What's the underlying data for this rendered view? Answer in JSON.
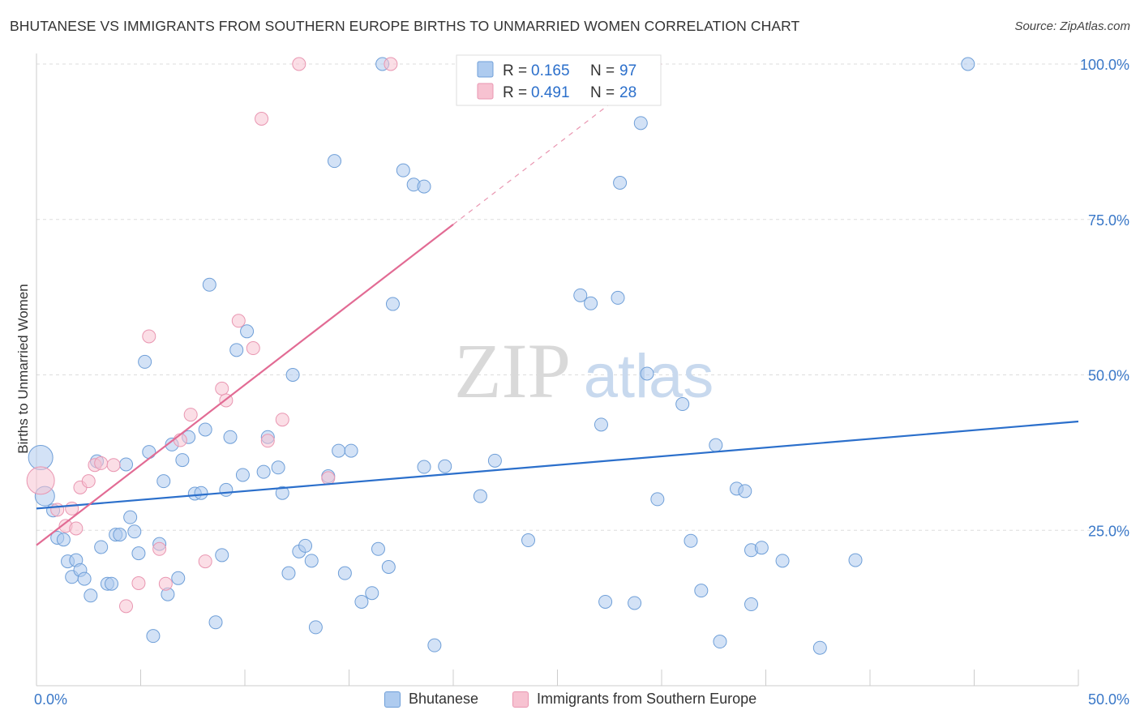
{
  "title": "BHUTANESE VS IMMIGRANTS FROM SOUTHERN EUROPE BIRTHS TO UNMARRIED WOMEN CORRELATION CHART",
  "source": "Source: ZipAtlas.com",
  "watermark": {
    "zip": "ZIP",
    "atlas": "atlas"
  },
  "colors": {
    "blue_fill": "#aecbef",
    "blue_stroke": "#6f9fd8",
    "blue_line": "#2b6fcb",
    "pink_fill": "#f7c2d1",
    "pink_stroke": "#e996b1",
    "pink_line": "#e26b94",
    "tick_text": "#3a78c8",
    "grid": "#dddddd"
  },
  "legend_stats": [
    {
      "r_label": "R =",
      "r_value": "0.165",
      "n_label": "N =",
      "n_value": "97"
    },
    {
      "r_label": "R =",
      "r_value": "0.491",
      "n_label": "N =",
      "n_value": "28"
    }
  ],
  "chart_data": {
    "type": "scatter",
    "title": "BHUTANESE VS IMMIGRANTS FROM SOUTHERN EUROPE BIRTHS TO UNMARRIED WOMEN CORRELATION CHART",
    "xlabel": "",
    "ylabel": "Births to Unmarried Women",
    "xlim": [
      0,
      50
    ],
    "ylim": [
      0,
      105
    ],
    "x_tick_labels": [
      "0.0%",
      "50.0%"
    ],
    "y_ticks": [
      25,
      50,
      75,
      100
    ],
    "y_tick_labels": [
      "25.0%",
      "50.0%",
      "75.0%",
      "100.0%"
    ],
    "grid": "horizontal dashed",
    "legend_position": "top-center and bottom",
    "series": [
      {
        "name": "Bhutanese",
        "color": "#aecbef",
        "r": 0.165,
        "n": 97,
        "trend": {
          "x": [
            0,
            50
          ],
          "y": [
            28.5,
            42.5
          ]
        },
        "points": [
          [
            0.2,
            36.7
          ],
          [
            0.4,
            30.5
          ],
          [
            0.8,
            28.2
          ],
          [
            1.0,
            23.8
          ],
          [
            1.3,
            23.5
          ],
          [
            1.5,
            20.0
          ],
          [
            1.7,
            17.5
          ],
          [
            1.9,
            20.2
          ],
          [
            2.1,
            18.6
          ],
          [
            2.3,
            17.2
          ],
          [
            2.6,
            14.5
          ],
          [
            2.9,
            36.1
          ],
          [
            3.1,
            22.3
          ],
          [
            3.4,
            16.4
          ],
          [
            3.6,
            16.4
          ],
          [
            3.8,
            24.3
          ],
          [
            4.0,
            24.3
          ],
          [
            4.3,
            35.6
          ],
          [
            4.5,
            27.1
          ],
          [
            4.7,
            24.8
          ],
          [
            4.9,
            21.3
          ],
          [
            5.2,
            52.1
          ],
          [
            5.4,
            37.6
          ],
          [
            5.6,
            8.0
          ],
          [
            5.9,
            22.8
          ],
          [
            6.1,
            32.9
          ],
          [
            6.3,
            14.7
          ],
          [
            6.5,
            38.8
          ],
          [
            6.8,
            17.3
          ],
          [
            7.0,
            36.3
          ],
          [
            7.3,
            40.0
          ],
          [
            7.6,
            30.9
          ],
          [
            7.9,
            31.0
          ],
          [
            8.1,
            41.2
          ],
          [
            8.3,
            64.5
          ],
          [
            8.6,
            10.2
          ],
          [
            8.9,
            21.0
          ],
          [
            9.1,
            31.5
          ],
          [
            9.3,
            40.0
          ],
          [
            9.6,
            54.0
          ],
          [
            9.9,
            33.9
          ],
          [
            10.1,
            57.0
          ],
          [
            10.9,
            34.4
          ],
          [
            11.1,
            40.0
          ],
          [
            11.6,
            35.1
          ],
          [
            11.8,
            31.0
          ],
          [
            12.1,
            18.1
          ],
          [
            12.3,
            50.0
          ],
          [
            12.6,
            21.6
          ],
          [
            12.9,
            22.5
          ],
          [
            13.2,
            20.1
          ],
          [
            13.4,
            9.4
          ],
          [
            14.0,
            33.7
          ],
          [
            14.3,
            84.4
          ],
          [
            14.5,
            37.8
          ],
          [
            14.8,
            18.1
          ],
          [
            15.1,
            37.8
          ],
          [
            15.6,
            13.5
          ],
          [
            16.1,
            14.9
          ],
          [
            16.4,
            22.0
          ],
          [
            16.9,
            19.1
          ],
          [
            17.1,
            61.4
          ],
          [
            17.6,
            82.9
          ],
          [
            18.1,
            80.6
          ],
          [
            18.6,
            80.3
          ],
          [
            18.6,
            35.2
          ],
          [
            19.1,
            6.5
          ],
          [
            19.6,
            35.3
          ],
          [
            16.6,
            100.0
          ],
          [
            27.0,
            100.0
          ],
          [
            21.3,
            30.5
          ],
          [
            22.0,
            36.2
          ],
          [
            23.6,
            23.4
          ],
          [
            26.1,
            62.8
          ],
          [
            26.6,
            61.5
          ],
          [
            27.1,
            42.0
          ],
          [
            27.3,
            13.5
          ],
          [
            27.9,
            62.4
          ],
          [
            28.0,
            80.9
          ],
          [
            28.7,
            13.3
          ],
          [
            29.3,
            50.2
          ],
          [
            29.8,
            30.0
          ],
          [
            31.0,
            45.3
          ],
          [
            31.4,
            23.3
          ],
          [
            31.9,
            15.3
          ],
          [
            32.6,
            38.7
          ],
          [
            32.8,
            7.1
          ],
          [
            33.6,
            31.7
          ],
          [
            34.0,
            31.3
          ],
          [
            34.3,
            13.1
          ],
          [
            34.3,
            21.8
          ],
          [
            34.8,
            22.2
          ],
          [
            35.8,
            20.1
          ],
          [
            37.6,
            6.1
          ],
          [
            39.3,
            20.2
          ],
          [
            44.7,
            100.0
          ],
          [
            29.0,
            90.5
          ]
        ]
      },
      {
        "name": "Immigrants from Southern Europe",
        "color": "#f7c2d1",
        "r": 0.491,
        "n": 28,
        "trend": {
          "x": [
            0,
            20
          ],
          "y": [
            22.6,
            74.2
          ]
        },
        "trend_dashed": {
          "x": [
            20,
            30
          ],
          "y": [
            74.2,
            100.0
          ]
        },
        "points": [
          [
            0.2,
            33.0
          ],
          [
            1.0,
            28.3
          ],
          [
            1.4,
            25.7
          ],
          [
            1.9,
            25.3
          ],
          [
            2.1,
            31.9
          ],
          [
            2.5,
            32.9
          ],
          [
            2.8,
            35.5
          ],
          [
            3.1,
            35.8
          ],
          [
            3.7,
            35.5
          ],
          [
            4.3,
            12.8
          ],
          [
            4.9,
            16.5
          ],
          [
            5.4,
            56.2
          ],
          [
            5.9,
            22.0
          ],
          [
            6.2,
            16.4
          ],
          [
            6.9,
            39.5
          ],
          [
            7.4,
            43.6
          ],
          [
            8.1,
            20.0
          ],
          [
            8.9,
            47.8
          ],
          [
            9.1,
            45.9
          ],
          [
            9.7,
            58.7
          ],
          [
            10.4,
            54.3
          ],
          [
            10.8,
            91.2
          ],
          [
            11.1,
            39.4
          ],
          [
            11.8,
            42.8
          ],
          [
            12.6,
            100.0
          ],
          [
            14.0,
            33.4
          ],
          [
            17.0,
            100.0
          ],
          [
            1.7,
            28.5
          ]
        ]
      }
    ]
  },
  "legend_bottom": [
    {
      "label": "Bhutanese"
    },
    {
      "label": "Immigrants from Southern Europe"
    }
  ]
}
